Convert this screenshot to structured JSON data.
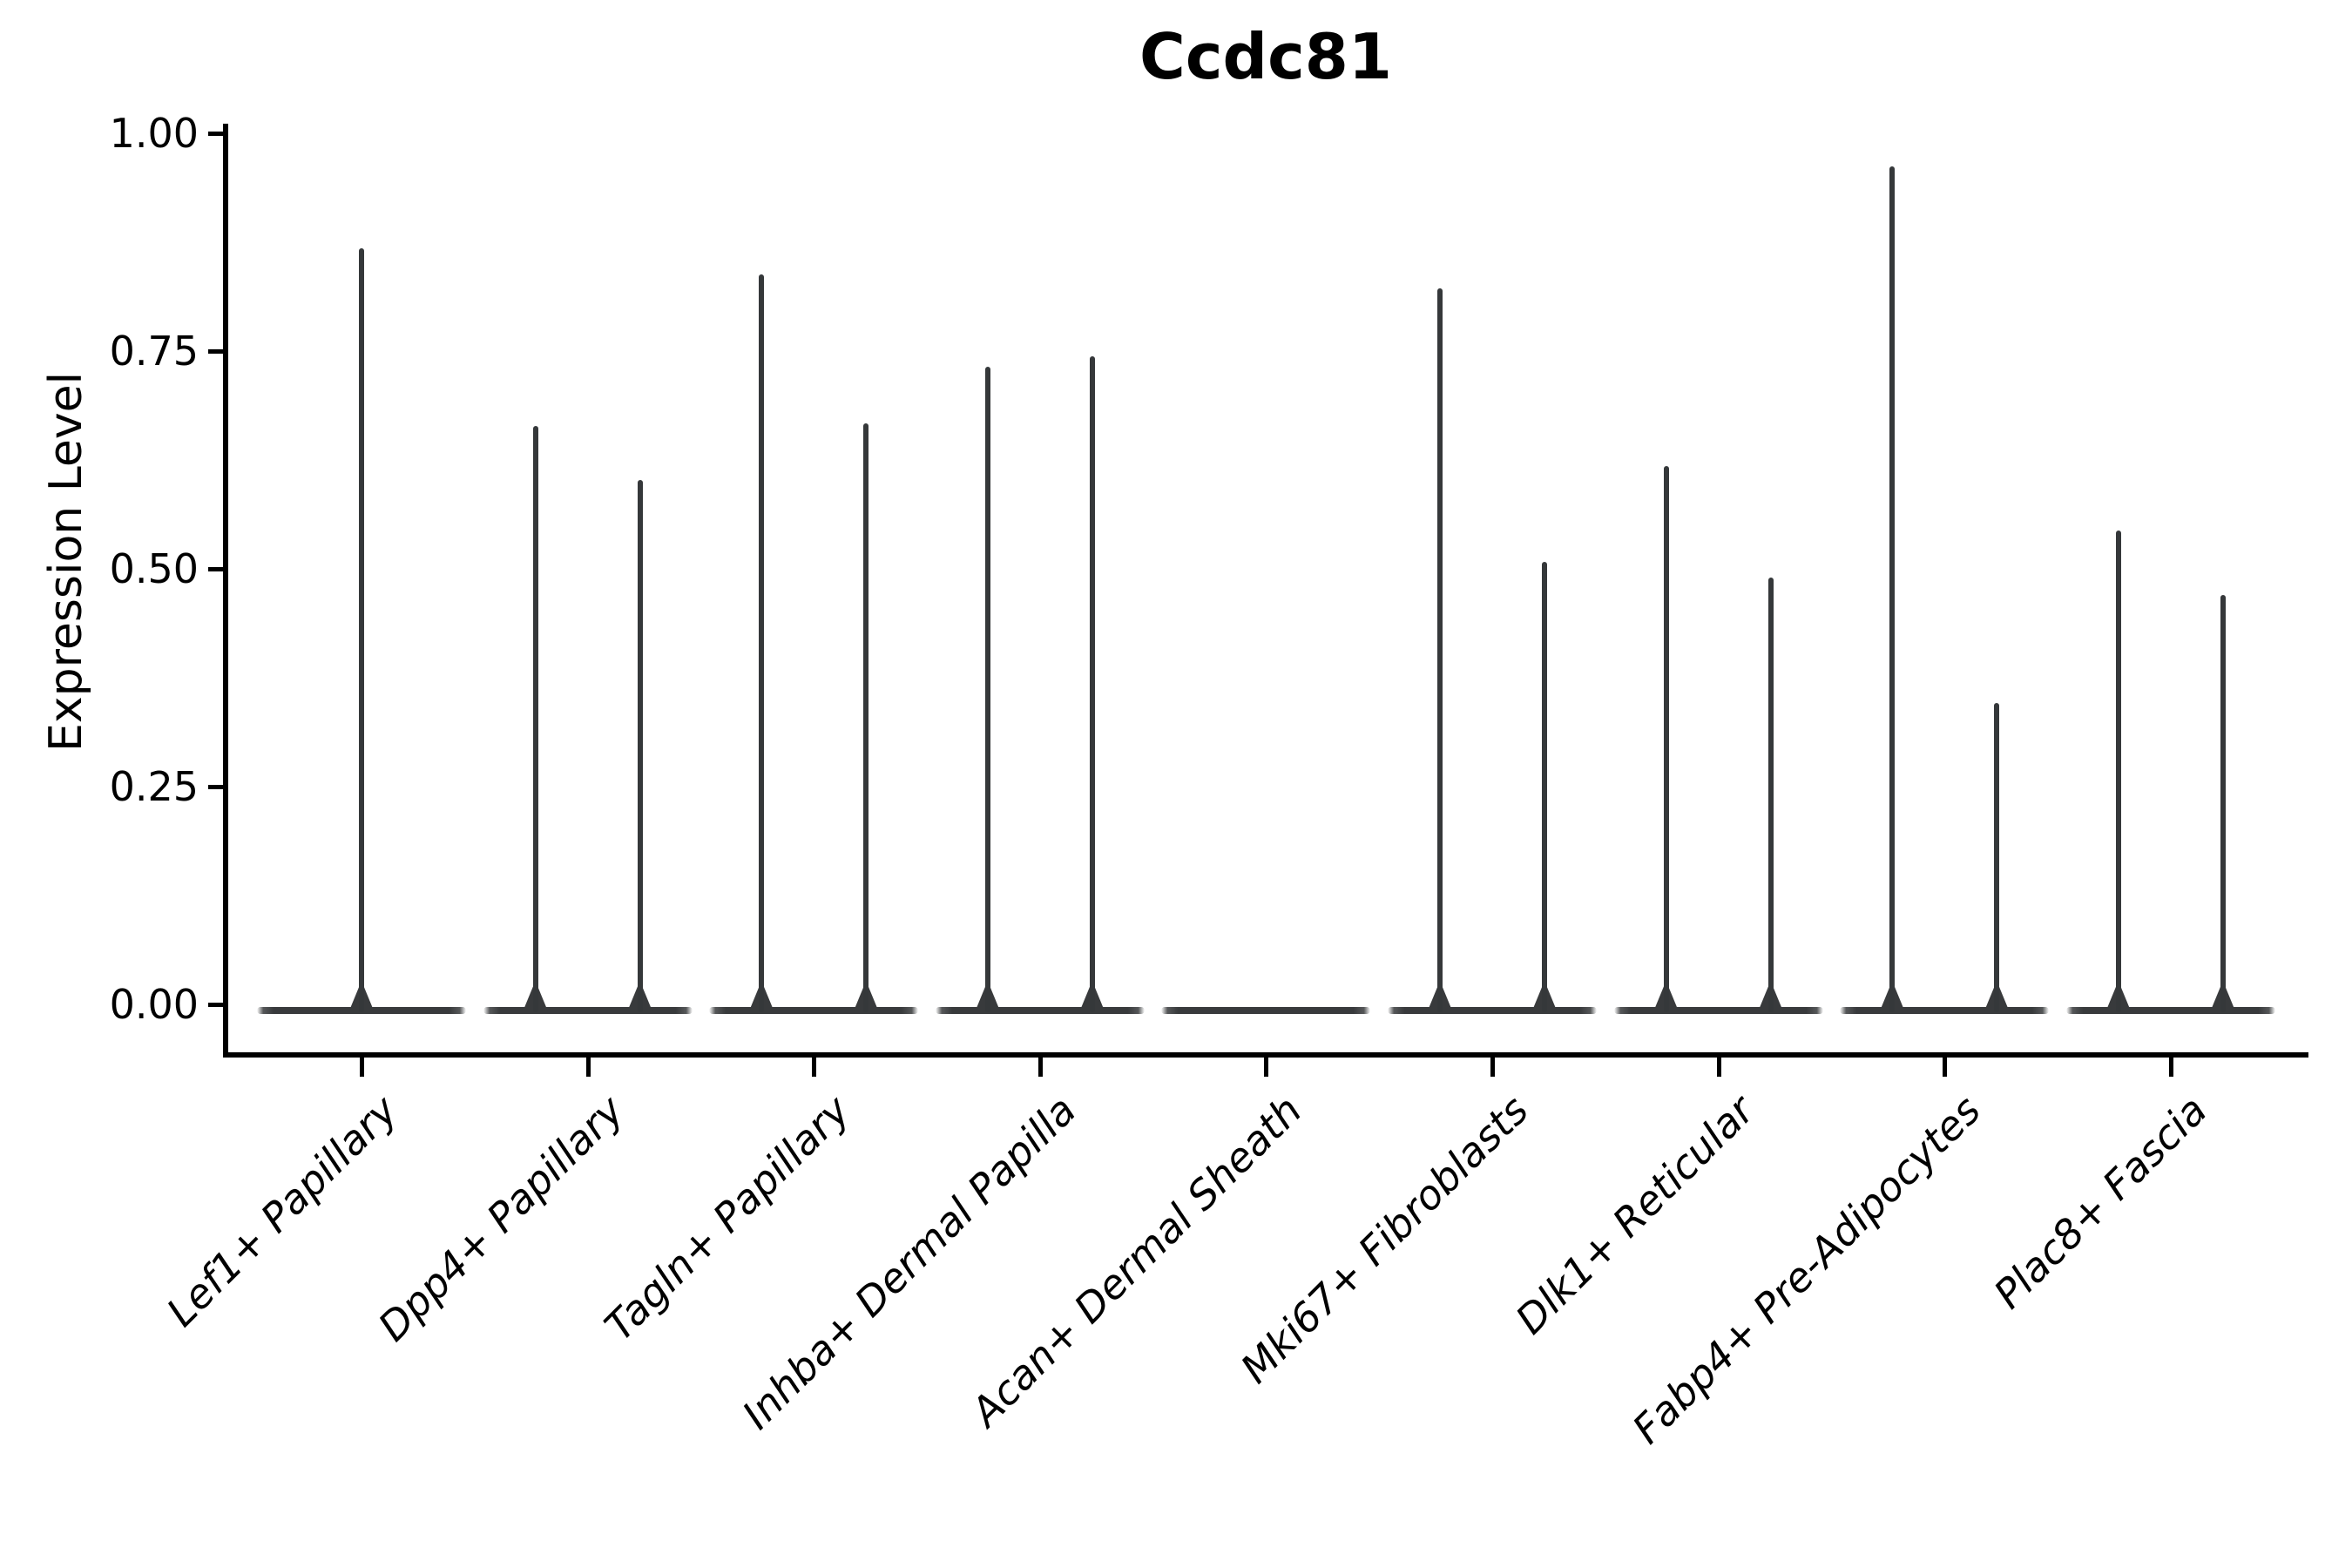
{
  "chart_data": {
    "type": "violin",
    "title": "Ccdc81",
    "ylabel": "Expression Level",
    "xlabel": "",
    "legend": "none",
    "grid": false,
    "ylim": [
      0,
      1
    ],
    "y_axis": {
      "tick_values": [
        0,
        0.25,
        0.5,
        0.75,
        1.0
      ],
      "tick_labels": [
        "0.00",
        "0.25",
        "0.50",
        "0.75",
        "1.00"
      ]
    },
    "categories": [
      "Lef1+ Papillary",
      "Dpp4+ Papillary",
      "Tagln+ Papillary",
      "Inhba+ Dermal Papilla",
      "Acan+ Dermal Sheath",
      "Mki67+ Fibroblasts",
      "Dlk1+ Reticular",
      "Fabp4+ Pre-Adipocytes",
      "Plac8+ Fascia"
    ],
    "violins": [
      {
        "category": "Lef1+ Papillary",
        "spikes": [
          {
            "pos": "center",
            "max": 0.868
          }
        ]
      },
      {
        "category": "Dpp4+ Papillary",
        "spikes": [
          {
            "pos": "left",
            "max": 0.664
          },
          {
            "pos": "right",
            "max": 0.602
          }
        ]
      },
      {
        "category": "Tagln+ Papillary",
        "spikes": [
          {
            "pos": "left",
            "max": 0.838
          },
          {
            "pos": "right",
            "max": 0.667
          }
        ]
      },
      {
        "category": "Inhba+ Dermal Papilla",
        "spikes": [
          {
            "pos": "left",
            "max": 0.732
          },
          {
            "pos": "right",
            "max": 0.744
          }
        ]
      },
      {
        "category": "Acan+ Dermal Sheath",
        "spikes": []
      },
      {
        "category": "Mki67+ Fibroblasts",
        "spikes": [
          {
            "pos": "left",
            "max": 0.822
          },
          {
            "pos": "right",
            "max": 0.508
          }
        ]
      },
      {
        "category": "Dlk1+ Reticular",
        "spikes": [
          {
            "pos": "left",
            "max": 0.618
          },
          {
            "pos": "right",
            "max": 0.49
          }
        ]
      },
      {
        "category": "Fabp4+ Pre-Adipocytes",
        "spikes": [
          {
            "pos": "left",
            "max": 0.962
          },
          {
            "pos": "right",
            "max": 0.346
          }
        ]
      },
      {
        "category": "Plac8+ Fascia",
        "spikes": [
          {
            "pos": "left",
            "max": 0.544
          },
          {
            "pos": "right",
            "max": 0.47
          }
        ]
      }
    ],
    "colors": {
      "violin_stroke": "#35383a",
      "axis": "#000000",
      "text": "#000000",
      "background": "#ffffff"
    }
  }
}
